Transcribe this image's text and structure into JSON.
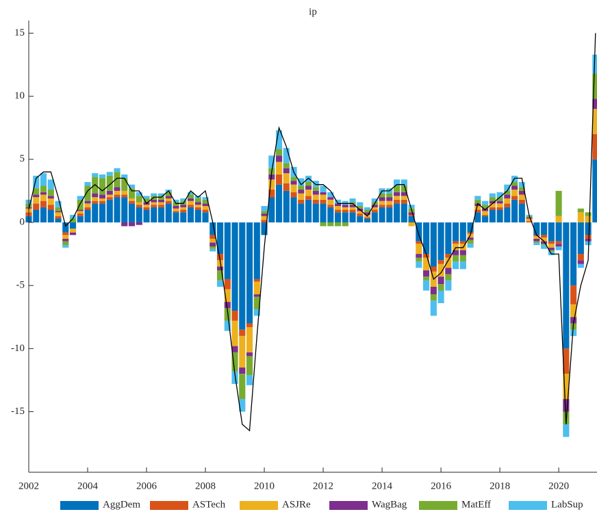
{
  "chart_data": {
    "type": "stacked_bar_line",
    "title": "ip",
    "x": [
      2002,
      2002.25,
      2002.5,
      2002.75,
      2003,
      2003.25,
      2003.5,
      2003.75,
      2004,
      2004.25,
      2004.5,
      2004.75,
      2005,
      2005.25,
      2005.5,
      2005.75,
      2006,
      2006.25,
      2006.5,
      2006.75,
      2007,
      2007.25,
      2007.5,
      2007.75,
      2008,
      2008.25,
      2008.5,
      2008.75,
      2009,
      2009.25,
      2009.5,
      2009.75,
      2010,
      2010.25,
      2010.5,
      2010.75,
      2011,
      2011.25,
      2011.5,
      2011.75,
      2012,
      2012.25,
      2012.5,
      2012.75,
      2013,
      2013.25,
      2013.5,
      2013.75,
      2014,
      2014.25,
      2014.5,
      2014.75,
      2015,
      2015.25,
      2015.5,
      2015.75,
      2016,
      2016.25,
      2016.5,
      2016.75,
      2017,
      2017.25,
      2017.5,
      2017.75,
      2018,
      2018.25,
      2018.5,
      2018.75,
      2019,
      2019.25,
      2019.5,
      2019.75,
      2020,
      2020.25,
      2020.5,
      2020.75,
      2021,
      2021.25
    ],
    "series": [
      {
        "name": "AggDem",
        "color": "#0072BD",
        "values": [
          0.5,
          1,
          1.2,
          1,
          0.3,
          -0.8,
          -0.5,
          0.5,
          1,
          1.5,
          1.5,
          1.8,
          2,
          2,
          1.5,
          1.2,
          1,
          1.2,
          1.2,
          1.5,
          0.8,
          0.8,
          1.2,
          1,
          0.8,
          -1,
          -2.5,
          -4.5,
          -7,
          -8.5,
          -8,
          -4.5,
          -1,
          2,
          3,
          2.5,
          2,
          1.5,
          1.8,
          1.5,
          1.5,
          1.2,
          0.8,
          0.8,
          0.8,
          0.5,
          0.3,
          0.8,
          1.2,
          1.2,
          1.5,
          1.5,
          0.5,
          -1.5,
          -2.5,
          -3.5,
          -3,
          -2.5,
          -1.5,
          -1.5,
          -0.8,
          0.8,
          0.5,
          1,
          1,
          1.2,
          1.8,
          1.5,
          0,
          -1,
          -1,
          -1.5,
          -1.5,
          -10,
          -5,
          -2.5,
          -1,
          5
        ]
      },
      {
        "name": "ASTech",
        "color": "#D95319",
        "values": [
          0.3,
          0.5,
          0.5,
          0.4,
          0.2,
          -0.2,
          0,
          0.2,
          0.2,
          0.2,
          0.2,
          0.2,
          0.2,
          0.2,
          0.2,
          0.2,
          0.2,
          0.2,
          0.2,
          0.2,
          0.1,
          0.2,
          0.2,
          0.2,
          0.2,
          -0.3,
          -0.5,
          -0.8,
          -0.8,
          -0.5,
          -0.3,
          -0.2,
          0.2,
          0.6,
          0.8,
          0.6,
          0.4,
          0.3,
          0.3,
          0.3,
          0.3,
          0.2,
          0.2,
          0.2,
          0.2,
          0.2,
          0.1,
          0.2,
          0.2,
          0.2,
          0.3,
          0.3,
          0.1,
          -0.2,
          -0.3,
          -0.4,
          -0.3,
          -0.3,
          -0.2,
          -0.2,
          -0.1,
          0.2,
          0.1,
          0.2,
          0.2,
          0.3,
          0.3,
          0.3,
          0.1,
          -0.1,
          -0.2,
          -0.2,
          -0.2,
          -2,
          -1.5,
          -0.5,
          -0.3,
          2
        ]
      },
      {
        "name": "ASJRe",
        "color": "#EDB120",
        "values": [
          0.3,
          0.5,
          0.5,
          0.5,
          0.3,
          -0.3,
          -0.3,
          0.2,
          0.3,
          0.3,
          0.2,
          0.2,
          0.3,
          0.3,
          0.2,
          0.2,
          0.2,
          0.2,
          0.2,
          0.2,
          0.2,
          0.2,
          0.3,
          0.2,
          0.3,
          -0.3,
          -0.5,
          -1,
          -2,
          -2.5,
          -2,
          -1,
          0.3,
          0.8,
          1,
          0.8,
          0.6,
          0.5,
          0.5,
          0.4,
          0.4,
          0.4,
          0.3,
          0.2,
          0.2,
          0.2,
          0.2,
          0.2,
          0.3,
          0.3,
          0.3,
          0.3,
          -0.3,
          -0.8,
          -1,
          -1.2,
          -1,
          -0.8,
          -0.5,
          -0.5,
          -0.3,
          0.3,
          0.3,
          0.3,
          0.3,
          0.4,
          0.5,
          0.4,
          0.2,
          -0.2,
          -0.3,
          -0.3,
          0.5,
          -2,
          -1,
          0.8,
          0.5,
          2
        ]
      },
      {
        "name": "WagBag",
        "color": "#7E2F8E",
        "values": [
          0.1,
          0.2,
          0.2,
          0.2,
          0.1,
          -0.2,
          -0.2,
          0.1,
          0.2,
          0.3,
          0.3,
          0.3,
          0.3,
          -0.3,
          -0.3,
          -0.2,
          0.2,
          0.2,
          0.2,
          0.2,
          0.2,
          0.2,
          0.2,
          0.2,
          0.2,
          -0.3,
          -0.3,
          -0.5,
          -0.5,
          -0.5,
          -0.3,
          -0.2,
          0.2,
          0.4,
          0.5,
          0.4,
          0.3,
          0.3,
          0.3,
          0.3,
          0.2,
          0.2,
          0.2,
          0.2,
          0.2,
          0.2,
          0.2,
          0.2,
          0.3,
          0.3,
          0.3,
          0.3,
          0.2,
          -0.3,
          -0.5,
          -0.6,
          -0.6,
          -0.5,
          -0.4,
          -0.4,
          -0.2,
          0.2,
          0.2,
          0.2,
          0.2,
          0.3,
          0.3,
          0.3,
          0.1,
          -0.2,
          -0.2,
          -0.2,
          -0.2,
          -1,
          -0.5,
          -0.3,
          -0.2,
          0.8
        ]
      },
      {
        "name": "MatEff",
        "color": "#77AC30",
        "values": [
          0.3,
          0.5,
          0.5,
          0.5,
          0.3,
          -0.3,
          0.3,
          0.8,
          1.2,
          1.3,
          1.3,
          1.2,
          1.2,
          1,
          0.8,
          0.5,
          0.3,
          0.3,
          0.3,
          0.3,
          0.3,
          0.3,
          0.3,
          0.3,
          0.3,
          -0.2,
          -0.8,
          -1,
          -1.5,
          -2,
          -1.5,
          -1,
          0.2,
          0.5,
          0.5,
          0.4,
          0.3,
          0.3,
          0.3,
          0.3,
          -0.3,
          -0.3,
          -0.3,
          -0.3,
          0.2,
          0.2,
          0.2,
          0.2,
          0.3,
          0.3,
          0.5,
          0.5,
          0.3,
          -0.3,
          -0.3,
          -0.5,
          -0.5,
          -0.5,
          -0.5,
          -0.5,
          -0.3,
          0.3,
          0.3,
          0.3,
          0.3,
          0.3,
          0.3,
          0.3,
          0.1,
          -0.1,
          -0.1,
          -0.1,
          2,
          -1,
          -0.5,
          0.3,
          0.3,
          2
        ]
      },
      {
        "name": "LabSup",
        "color": "#4DBEEE",
        "values": [
          0.3,
          1,
          1,
          0.8,
          0.5,
          -0.2,
          0.3,
          0.3,
          0.3,
          0.3,
          0.3,
          0.3,
          0.3,
          0.3,
          0.3,
          0.3,
          0.2,
          0.2,
          0.2,
          0.2,
          0.2,
          0.2,
          0.2,
          0.2,
          0.2,
          -0.2,
          -0.5,
          -0.8,
          -1,
          -1,
          -0.8,
          -0.5,
          0.4,
          1,
          1.5,
          1.2,
          0.8,
          0.6,
          0.5,
          0.5,
          0.5,
          0.4,
          0.3,
          0.3,
          0.3,
          0.3,
          0.2,
          0.3,
          0.4,
          0.4,
          0.5,
          0.5,
          0.3,
          -0.5,
          -0.8,
          -1.2,
          -1,
          -0.8,
          -0.6,
          -0.6,
          -0.3,
          0.3,
          0.3,
          0.3,
          0.4,
          0.5,
          0.5,
          0.4,
          0.1,
          -0.2,
          -0.3,
          -0.3,
          -0.3,
          -1,
          -0.5,
          -0.3,
          -0.3,
          1.5
        ]
      },
      {
        "kind": "line",
        "color": "#000000",
        "values": [
          1,
          3.5,
          4,
          4,
          2,
          -0.3,
          0.3,
          1.5,
          2.5,
          3,
          2.5,
          3,
          3.5,
          3.5,
          2.5,
          2.5,
          1.5,
          2,
          2,
          2.5,
          1.5,
          1.5,
          2.5,
          2,
          2.5,
          0,
          -3,
          -7,
          -12,
          -16,
          -16.5,
          -9,
          -2,
          4,
          7.5,
          6,
          4,
          3,
          3.5,
          3,
          3,
          2.5,
          1.5,
          1.5,
          1.5,
          1,
          0.5,
          1.5,
          2.5,
          2.5,
          3,
          3,
          1,
          -1,
          -2.5,
          -4.5,
          -4,
          -3,
          -2,
          -2,
          -1,
          1.5,
          1,
          1.5,
          2,
          2.5,
          3.5,
          3.5,
          0.5,
          -1,
          -1.5,
          -2.5,
          -2.5,
          -16,
          -8,
          -5,
          -3,
          15
        ]
      }
    ],
    "xlim": [
      2002,
      2021.3
    ],
    "xticks": [
      2002,
      2004,
      2006,
      2008,
      2010,
      2012,
      2014,
      2016,
      2018,
      2020
    ],
    "ylim": [
      -19.8,
      16
    ],
    "yticks": [
      -15,
      -10,
      -5,
      0,
      5,
      10,
      15
    ],
    "legend": "bottom"
  }
}
